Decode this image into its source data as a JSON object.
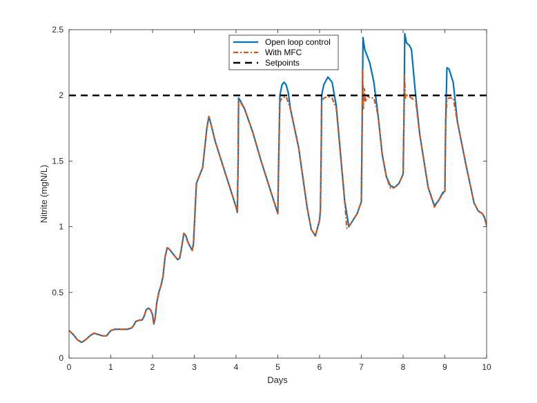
{
  "chart_data": {
    "type": "line",
    "title": "",
    "xlabel": "Days",
    "ylabel": "Nitrite (mgN/L)",
    "xlim": [
      0,
      10
    ],
    "ylim": [
      0,
      2.5
    ],
    "xticks": [
      "0",
      "1",
      "2",
      "3",
      "4",
      "5",
      "6",
      "7",
      "8",
      "9",
      "10"
    ],
    "yticks": [
      "0",
      "0.5",
      "1",
      "1.5",
      "2",
      "2.5"
    ],
    "grid": false,
    "legend_position": "top-right",
    "series": [
      {
        "name": "Open loop control",
        "color": "#0072bd",
        "style": "solid",
        "points": [
          [
            0,
            0.21
          ],
          [
            0.1,
            0.18
          ],
          [
            0.2,
            0.14
          ],
          [
            0.3,
            0.12
          ],
          [
            0.4,
            0.14
          ],
          [
            0.5,
            0.17
          ],
          [
            0.6,
            0.19
          ],
          [
            0.7,
            0.18
          ],
          [
            0.8,
            0.17
          ],
          [
            0.9,
            0.17
          ],
          [
            0.95,
            0.19
          ],
          [
            1.0,
            0.21
          ],
          [
            1.1,
            0.22
          ],
          [
            1.2,
            0.22
          ],
          [
            1.3,
            0.22
          ],
          [
            1.4,
            0.22
          ],
          [
            1.5,
            0.23
          ],
          [
            1.55,
            0.25
          ],
          [
            1.6,
            0.28
          ],
          [
            1.7,
            0.29
          ],
          [
            1.75,
            0.29
          ],
          [
            1.8,
            0.32
          ],
          [
            1.85,
            0.37
          ],
          [
            1.9,
            0.38
          ],
          [
            1.95,
            0.37
          ],
          [
            2.0,
            0.33
          ],
          [
            2.03,
            0.26
          ],
          [
            2.06,
            0.3
          ],
          [
            2.1,
            0.42
          ],
          [
            2.15,
            0.5
          ],
          [
            2.2,
            0.55
          ],
          [
            2.25,
            0.62
          ],
          [
            2.3,
            0.77
          ],
          [
            2.35,
            0.84
          ],
          [
            2.4,
            0.83
          ],
          [
            2.5,
            0.79
          ],
          [
            2.6,
            0.75
          ],
          [
            2.65,
            0.76
          ],
          [
            2.7,
            0.85
          ],
          [
            2.75,
            0.95
          ],
          [
            2.8,
            0.93
          ],
          [
            2.85,
            0.88
          ],
          [
            2.95,
            0.82
          ],
          [
            2.98,
            0.87
          ],
          [
            3.0,
            1.0
          ],
          [
            3.05,
            1.33
          ],
          [
            3.1,
            1.37
          ],
          [
            3.2,
            1.45
          ],
          [
            3.3,
            1.75
          ],
          [
            3.35,
            1.84
          ],
          [
            3.4,
            1.78
          ],
          [
            3.5,
            1.65
          ],
          [
            3.7,
            1.45
          ],
          [
            3.9,
            1.25
          ],
          [
            4.0,
            1.15
          ],
          [
            4.03,
            1.11
          ],
          [
            4.05,
            1.5
          ],
          [
            4.06,
            1.98
          ],
          [
            4.1,
            1.96
          ],
          [
            4.2,
            1.9
          ],
          [
            4.4,
            1.72
          ],
          [
            4.6,
            1.5
          ],
          [
            4.8,
            1.3
          ],
          [
            5.0,
            1.1
          ],
          [
            5.02,
            1.5
          ],
          [
            5.05,
            2.0
          ],
          [
            5.1,
            2.08
          ],
          [
            5.15,
            2.1
          ],
          [
            5.2,
            2.08
          ],
          [
            5.25,
            2.02
          ],
          [
            5.3,
            1.9
          ],
          [
            5.5,
            1.6
          ],
          [
            5.7,
            1.15
          ],
          [
            5.8,
            0.98
          ],
          [
            5.9,
            0.93
          ],
          [
            6.0,
            1.05
          ],
          [
            6.02,
            1.13
          ],
          [
            6.04,
            1.6
          ],
          [
            6.05,
            2.0
          ],
          [
            6.1,
            2.08
          ],
          [
            6.2,
            2.14
          ],
          [
            6.3,
            2.1
          ],
          [
            6.4,
            1.92
          ],
          [
            6.6,
            1.2
          ],
          [
            6.7,
            1.0
          ],
          [
            6.8,
            1.05
          ],
          [
            6.9,
            1.1
          ],
          [
            7.0,
            1.19
          ],
          [
            7.02,
            1.8
          ],
          [
            7.04,
            2.44
          ],
          [
            7.08,
            2.35
          ],
          [
            7.2,
            2.25
          ],
          [
            7.3,
            2.1
          ],
          [
            7.4,
            1.85
          ],
          [
            7.5,
            1.55
          ],
          [
            7.6,
            1.38
          ],
          [
            7.7,
            1.31
          ],
          [
            7.8,
            1.3
          ],
          [
            7.9,
            1.33
          ],
          [
            8.0,
            1.4
          ],
          [
            8.02,
            1.8
          ],
          [
            8.04,
            2.47
          ],
          [
            8.08,
            2.4
          ],
          [
            8.15,
            2.38
          ],
          [
            8.2,
            2.35
          ],
          [
            8.3,
            2.0
          ],
          [
            8.4,
            1.7
          ],
          [
            8.6,
            1.3
          ],
          [
            8.75,
            1.16
          ],
          [
            8.85,
            1.2
          ],
          [
            8.95,
            1.26
          ],
          [
            9.0,
            1.27
          ],
          [
            9.02,
            1.8
          ],
          [
            9.05,
            2.21
          ],
          [
            9.1,
            2.2
          ],
          [
            9.2,
            2.1
          ],
          [
            9.3,
            1.8
          ],
          [
            9.5,
            1.48
          ],
          [
            9.7,
            1.18
          ],
          [
            9.8,
            1.12
          ],
          [
            9.9,
            1.1
          ],
          [
            9.95,
            1.07
          ],
          [
            10.0,
            1.01
          ]
        ]
      },
      {
        "name": "With MFC",
        "color": "#d95319",
        "style": "dashdot",
        "points": [
          [
            0,
            0.21
          ],
          [
            0.1,
            0.18
          ],
          [
            0.2,
            0.14
          ],
          [
            0.3,
            0.12
          ],
          [
            0.4,
            0.14
          ],
          [
            0.5,
            0.17
          ],
          [
            0.6,
            0.19
          ],
          [
            0.7,
            0.18
          ],
          [
            0.8,
            0.17
          ],
          [
            0.9,
            0.17
          ],
          [
            0.95,
            0.19
          ],
          [
            1.0,
            0.21
          ],
          [
            1.1,
            0.22
          ],
          [
            1.2,
            0.22
          ],
          [
            1.3,
            0.22
          ],
          [
            1.4,
            0.22
          ],
          [
            1.5,
            0.23
          ],
          [
            1.55,
            0.25
          ],
          [
            1.6,
            0.28
          ],
          [
            1.7,
            0.29
          ],
          [
            1.75,
            0.29
          ],
          [
            1.8,
            0.32
          ],
          [
            1.85,
            0.37
          ],
          [
            1.9,
            0.38
          ],
          [
            1.95,
            0.37
          ],
          [
            2.0,
            0.33
          ],
          [
            2.03,
            0.26
          ],
          [
            2.06,
            0.3
          ],
          [
            2.1,
            0.42
          ],
          [
            2.15,
            0.5
          ],
          [
            2.2,
            0.55
          ],
          [
            2.25,
            0.62
          ],
          [
            2.3,
            0.77
          ],
          [
            2.35,
            0.84
          ],
          [
            2.4,
            0.83
          ],
          [
            2.5,
            0.79
          ],
          [
            2.6,
            0.75
          ],
          [
            2.65,
            0.76
          ],
          [
            2.7,
            0.85
          ],
          [
            2.75,
            0.95
          ],
          [
            2.8,
            0.93
          ],
          [
            2.85,
            0.88
          ],
          [
            2.95,
            0.82
          ],
          [
            2.98,
            0.87
          ],
          [
            3.0,
            1.0
          ],
          [
            3.05,
            1.33
          ],
          [
            3.1,
            1.37
          ],
          [
            3.2,
            1.45
          ],
          [
            3.3,
            1.75
          ],
          [
            3.35,
            1.84
          ],
          [
            3.4,
            1.78
          ],
          [
            3.5,
            1.65
          ],
          [
            3.7,
            1.45
          ],
          [
            3.9,
            1.25
          ],
          [
            4.0,
            1.15
          ],
          [
            4.03,
            1.11
          ],
          [
            4.05,
            1.5
          ],
          [
            4.06,
            1.96
          ],
          [
            4.1,
            1.95
          ],
          [
            4.2,
            1.9
          ],
          [
            4.4,
            1.72
          ],
          [
            4.6,
            1.5
          ],
          [
            4.8,
            1.3
          ],
          [
            5.0,
            1.1
          ],
          [
            5.02,
            1.5
          ],
          [
            5.05,
            1.95
          ],
          [
            5.1,
            1.98
          ],
          [
            5.2,
            1.99
          ],
          [
            5.3,
            1.9
          ],
          [
            5.5,
            1.6
          ],
          [
            5.7,
            1.15
          ],
          [
            5.8,
            0.98
          ],
          [
            5.9,
            0.93
          ],
          [
            6.0,
            1.05
          ],
          [
            6.02,
            1.13
          ],
          [
            6.04,
            1.6
          ],
          [
            6.05,
            1.95
          ],
          [
            6.1,
            1.98
          ],
          [
            6.2,
            1.99
          ],
          [
            6.3,
            1.98
          ],
          [
            6.4,
            1.9
          ],
          [
            6.6,
            1.2
          ],
          [
            6.65,
            0.99
          ],
          [
            6.7,
            1.0
          ],
          [
            6.8,
            1.05
          ],
          [
            6.9,
            1.1
          ],
          [
            7.0,
            1.19
          ],
          [
            7.02,
            1.8
          ],
          [
            7.03,
            2.2
          ],
          [
            7.05,
            1.9
          ],
          [
            7.07,
            2.05
          ],
          [
            7.1,
            1.95
          ],
          [
            7.15,
            2.0
          ],
          [
            7.2,
            1.98
          ],
          [
            7.3,
            1.98
          ],
          [
            7.4,
            1.85
          ],
          [
            7.5,
            1.55
          ],
          [
            7.6,
            1.38
          ],
          [
            7.7,
            1.29
          ],
          [
            7.8,
            1.3
          ],
          [
            7.9,
            1.33
          ],
          [
            8.0,
            1.4
          ],
          [
            8.02,
            1.8
          ],
          [
            8.03,
            2.15
          ],
          [
            8.06,
            1.98
          ],
          [
            8.1,
            2.0
          ],
          [
            8.2,
            1.98
          ],
          [
            8.3,
            1.96
          ],
          [
            8.4,
            1.7
          ],
          [
            8.6,
            1.3
          ],
          [
            8.75,
            1.15
          ],
          [
            8.85,
            1.2
          ],
          [
            8.95,
            1.25
          ],
          [
            9.0,
            1.26
          ],
          [
            9.02,
            1.8
          ],
          [
            9.05,
            1.97
          ],
          [
            9.1,
            1.98
          ],
          [
            9.2,
            1.98
          ],
          [
            9.3,
            1.8
          ],
          [
            9.5,
            1.48
          ],
          [
            9.7,
            1.18
          ],
          [
            9.8,
            1.12
          ],
          [
            9.9,
            1.1
          ],
          [
            9.95,
            1.07
          ],
          [
            10.0,
            1.01
          ]
        ]
      },
      {
        "name": "Setpoints",
        "color": "#000000",
        "style": "dashed",
        "points": [
          [
            0,
            2.0
          ],
          [
            10,
            2.0
          ]
        ]
      }
    ]
  }
}
